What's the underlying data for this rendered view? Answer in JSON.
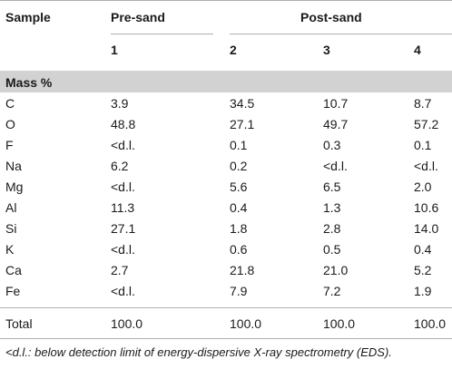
{
  "table": {
    "header": {
      "sample": "Sample",
      "pre_sand": "Pre-sand",
      "post_sand": "Post-sand",
      "col1": "1",
      "col2": "2",
      "col3": "3",
      "col4": "4"
    },
    "section_label": "Mass %",
    "rows": [
      {
        "element": "C",
        "v1": "3.9",
        "v2": "34.5",
        "v3": "10.7",
        "v4": "8.7"
      },
      {
        "element": "O",
        "v1": "48.8",
        "v2": "27.1",
        "v3": "49.7",
        "v4": "57.2"
      },
      {
        "element": "F",
        "v1": "<d.l.",
        "v2": "0.1",
        "v3": "0.3",
        "v4": "0.1"
      },
      {
        "element": "Na",
        "v1": "6.2",
        "v2": "0.2",
        "v3": "<d.l.",
        "v4": "<d.l."
      },
      {
        "element": "Mg",
        "v1": "<d.l.",
        "v2": "5.6",
        "v3": "6.5",
        "v4": "2.0"
      },
      {
        "element": "Al",
        "v1": "11.3",
        "v2": "0.4",
        "v3": "1.3",
        "v4": "10.6"
      },
      {
        "element": "Si",
        "v1": "27.1",
        "v2": "1.8",
        "v3": "2.8",
        "v4": "14.0"
      },
      {
        "element": "K",
        "v1": "<d.l.",
        "v2": "0.6",
        "v3": "0.5",
        "v4": "0.4"
      },
      {
        "element": "Ca",
        "v1": "2.7",
        "v2": "21.8",
        "v3": "21.0",
        "v4": "5.2"
      },
      {
        "element": "Fe",
        "v1": "<d.l.",
        "v2": "7.9",
        "v3": "7.2",
        "v4": "1.9"
      }
    ],
    "total": {
      "label": "Total",
      "v1": "100.0",
      "v2": "100.0",
      "v3": "100.0",
      "v4": "100.0"
    },
    "footnote": "<d.l.: below detection limit of energy-dispersive X-ray spectrometry (EDS)."
  },
  "colors": {
    "section_band": "#d2d2d2",
    "rule": "#b0b0b0",
    "text": "#1a1a1a"
  }
}
